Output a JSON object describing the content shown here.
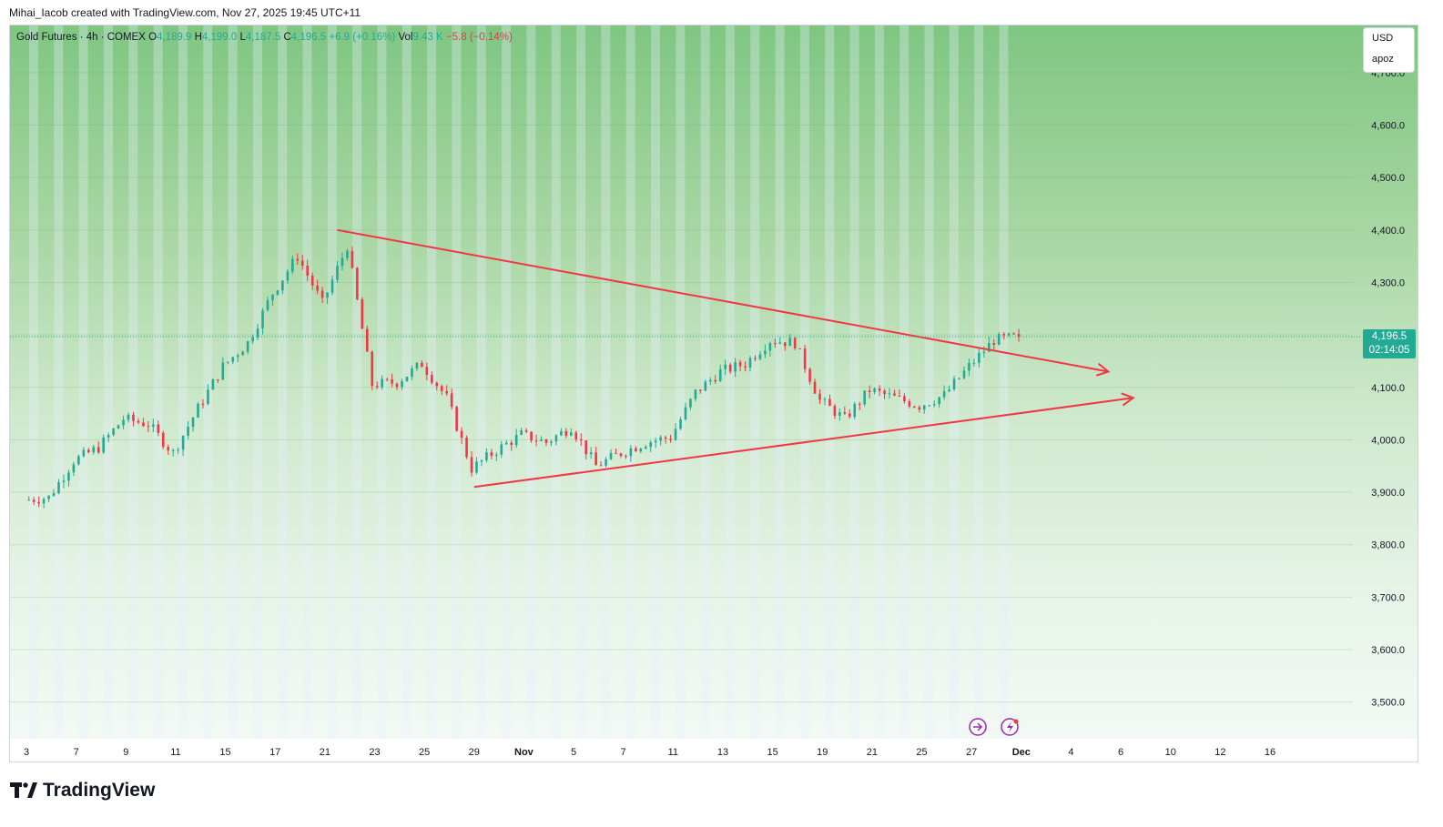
{
  "attribution": "Mihai_Iacob created with TradingView.com, Nov 27, 2025 19:45 UTC+11",
  "legend": {
    "symbol": "Gold Futures · 4h · COMEX",
    "o_label": "O",
    "o": "4,189.9",
    "h_label": "H",
    "h": "4,199.0",
    "l_label": "L",
    "l": "4,187.5",
    "c_label": "C",
    "c": "4,196.5",
    "change": "+6.9 (+0.16%)",
    "vol_label": "Vol",
    "vol": "9.43 K",
    "vol_change": "−5.8 (−0.14%)"
  },
  "currency_box": {
    "currency": "USD",
    "indicator": "apoz"
  },
  "last_price": {
    "price": "4,196.5",
    "countdown": "02:14:05"
  },
  "brand": "TradingView",
  "colors": {
    "up": "#22ab94",
    "down": "#f23645",
    "trendline": "#f23645",
    "price_tag": "#22ab94"
  },
  "chart_data": {
    "type": "candlestick",
    "title": "Gold Futures · 4h · COMEX",
    "y_axis": {
      "ticks": [
        3500,
        3600,
        3700,
        3800,
        3900,
        4000,
        4100,
        4200,
        4300,
        4400,
        4500,
        4600,
        4700
      ],
      "tick_labels": [
        "3,500.0",
        "3,600.0",
        "3,700.0",
        "3,800.0",
        "3,900.0",
        "4,000.0",
        "4,100.0",
        "4,200.0",
        "4,300.0",
        "4,400.0",
        "4,500.0",
        "4,600.0",
        "4,700.0"
      ],
      "ylim": [
        3430,
        4790
      ]
    },
    "x_axis": {
      "tick_labels": [
        "3",
        "7",
        "9",
        "11",
        "15",
        "17",
        "21",
        "23",
        "25",
        "29",
        "Nov",
        "5",
        "7",
        "11",
        "13",
        "15",
        "19",
        "21",
        "25",
        "27",
        "Dec",
        "4",
        "6",
        "10",
        "12",
        "16"
      ],
      "tick_index": [
        0,
        4,
        8,
        12,
        16,
        20,
        24,
        28,
        32,
        36,
        40,
        44,
        48,
        52,
        56,
        60,
        64,
        68,
        72,
        76,
        80,
        84,
        88,
        92,
        96,
        100
      ]
    },
    "daily_closes": [
      {
        "day": "3",
        "close": 3890
      },
      {
        "day": "6",
        "close": 3960
      },
      {
        "day": "7",
        "close": 3985
      },
      {
        "day": "8",
        "close": 4040
      },
      {
        "day": "9",
        "close": 4030
      },
      {
        "day": "10",
        "close": 3975
      },
      {
        "day": "13",
        "close": 4060
      },
      {
        "day": "14",
        "close": 4140
      },
      {
        "day": "15",
        "close": 4185
      },
      {
        "day": "16",
        "close": 4280
      },
      {
        "day": "17",
        "close": 4350
      },
      {
        "day": "20",
        "close": 4260
      },
      {
        "day": "21",
        "close": 4370
      },
      {
        "day": "22",
        "close": 4105
      },
      {
        "day": "23",
        "close": 4110
      },
      {
        "day": "24",
        "close": 4145
      },
      {
        "day": "27",
        "close": 4080
      },
      {
        "day": "28",
        "close": 3945
      },
      {
        "day": "29",
        "close": 3980
      },
      {
        "day": "30",
        "close": 4010
      },
      {
        "day": "31",
        "close": 3995
      },
      {
        "day": "Nov 3",
        "close": 4025
      },
      {
        "day": "4",
        "close": 3950
      },
      {
        "day": "5",
        "close": 3975
      },
      {
        "day": "6",
        "close": 3995
      },
      {
        "day": "7",
        "close": 4005
      },
      {
        "day": "10",
        "close": 4090
      },
      {
        "day": "11",
        "close": 4130
      },
      {
        "day": "12",
        "close": 4145
      },
      {
        "day": "13",
        "close": 4190
      },
      {
        "day": "14",
        "close": 4185
      },
      {
        "day": "17",
        "close": 4075
      },
      {
        "day": "18",
        "close": 4040
      },
      {
        "day": "19",
        "close": 4095
      },
      {
        "day": "20",
        "close": 4080
      },
      {
        "day": "21",
        "close": 4065
      },
      {
        "day": "24",
        "close": 4085
      },
      {
        "day": "25",
        "close": 4140
      },
      {
        "day": "26",
        "close": 4190
      },
      {
        "day": "27",
        "close": 4196.5
      }
    ],
    "trendlines": [
      {
        "from": {
          "x": "Oct 21",
          "y": 4400
        },
        "to": {
          "x": "Dec 3",
          "y": 4130
        },
        "arrow": true
      },
      {
        "from": {
          "x": "Oct 28",
          "y": 3910
        },
        "to": {
          "x": "Dec 4",
          "y": 4080
        },
        "arrow": true
      }
    ],
    "last_price": 4196.5,
    "grid": true,
    "legend_position": "top-left"
  }
}
